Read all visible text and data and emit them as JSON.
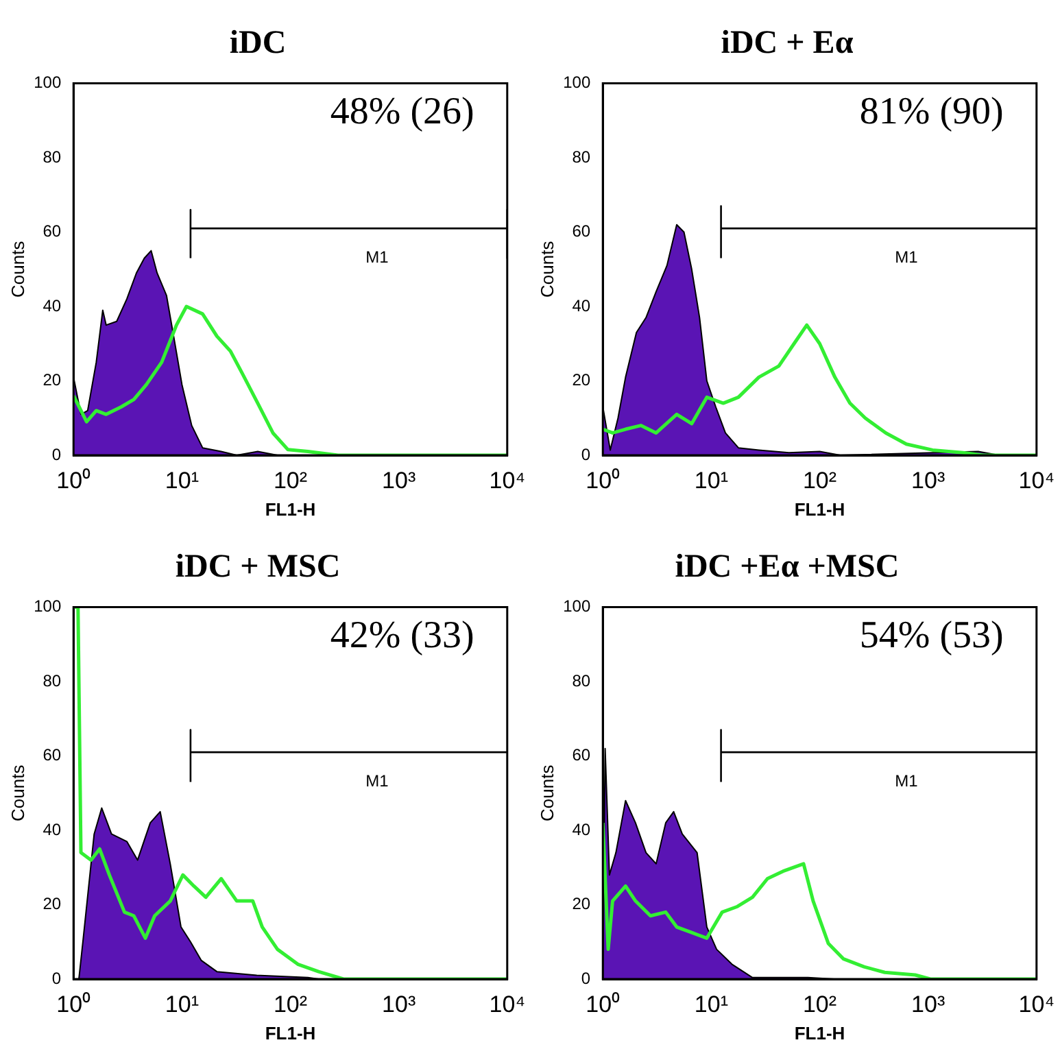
{
  "chart_data": [
    {
      "type": "area",
      "title": "iDC",
      "xlabel": "FL1-H",
      "ylabel": "Counts",
      "log": "x",
      "xlim": [
        1,
        10000
      ],
      "ylim": [
        0,
        100
      ],
      "xticks": [
        {
          "value": 1,
          "label": "10⁰"
        },
        {
          "value": 10,
          "label": "10¹"
        },
        {
          "value": 100,
          "label": "10²"
        },
        {
          "value": 1000,
          "label": "10³"
        },
        {
          "value": 10000,
          "label": "10⁴"
        }
      ],
      "yticks": [
        0,
        20,
        40,
        60,
        80,
        100
      ],
      "annotations": [
        "48% (26)",
        "M1"
      ],
      "series": [
        {
          "color": "#5a14b4",
          "x": [
            1,
            1.17,
            1.35,
            1.62,
            1.86,
            2.0,
            2.5,
            3.1,
            3.8,
            4.5,
            5.2,
            5.9,
            7.2,
            8.5,
            10,
            12.3,
            15.5,
            23,
            32,
            50,
            76,
            10000
          ],
          "values": [
            21,
            11,
            12,
            25,
            39,
            35,
            36,
            42,
            49,
            53,
            55,
            49,
            43,
            31,
            19,
            8,
            2,
            1,
            0,
            1,
            0,
            0
          ]
        },
        {
          "type": "line",
          "color": "#33ee33",
          "x": [
            1,
            1.32,
            1.62,
            2.0,
            2.75,
            3.6,
            4.7,
            6.5,
            8.9,
            11,
            15.5,
            21,
            28,
            36,
            50,
            69,
            95,
            145,
            275,
            10000
          ],
          "values": [
            16,
            9,
            12,
            11,
            13,
            15,
            19,
            25,
            35,
            40,
            38,
            32,
            28,
            22,
            14,
            6,
            1.5,
            1,
            0,
            0
          ]
        },
        {
          "type": "line",
          "color": "#000000",
          "x": [
            12,
            12,
            12,
            10000,
            10000,
            10000
          ],
          "values": [
            53,
            66,
            61,
            61,
            66,
            53
          ]
        }
      ]
    },
    {
      "type": "area",
      "title": "iDC + Eα",
      "xlabel": "FL1-H",
      "ylabel": "Counts",
      "log": "x",
      "xlim": [
        1,
        10000
      ],
      "ylim": [
        0,
        100
      ],
      "xticks": [
        {
          "value": 1,
          "label": "10⁰"
        },
        {
          "value": 10,
          "label": "10¹"
        },
        {
          "value": 100,
          "label": "10²"
        },
        {
          "value": 1000,
          "label": "10³"
        },
        {
          "value": 10000,
          "label": "10⁴"
        }
      ],
      "yticks": [
        0,
        20,
        40,
        60,
        80,
        100
      ],
      "annotations": [
        "81% (90)",
        "M1"
      ],
      "series": [
        {
          "color": "#5a14b4",
          "x": [
            1,
            1.17,
            1.38,
            1.62,
            2.04,
            2.5,
            3.1,
            3.9,
            4.8,
            5.6,
            6.6,
            7.8,
            9.1,
            11,
            13.5,
            17.8,
            27.5,
            52,
            100,
            155,
            2900,
            4500,
            10000
          ],
          "values": [
            13,
            1.4,
            10,
            21,
            33,
            37,
            44,
            51,
            62,
            60,
            50,
            37,
            20,
            13,
            6,
            2,
            1.4,
            0.7,
            1,
            0,
            1,
            0,
            0
          ]
        },
        {
          "type": "line",
          "color": "#33ee33",
          "x": [
            1,
            1.23,
            1.62,
            2.24,
            3.1,
            4.8,
            6.6,
            9.1,
            12.9,
            17.8,
            27.5,
            42,
            58,
            76,
            100,
            138,
            190,
            263,
            407,
            630,
            1100,
            2090,
            3240,
            10000
          ],
          "values": [
            7,
            6,
            7,
            8,
            6,
            11,
            8.5,
            15.6,
            14,
            15.6,
            21,
            24,
            30,
            35,
            30,
            21,
            14,
            10,
            6,
            3,
            1.4,
            0.7,
            0,
            0
          ]
        },
        {
          "type": "line",
          "color": "#000000",
          "x": [
            12.3,
            12.3,
            12.3,
            10000
          ],
          "values": [
            53,
            67,
            61,
            61
          ]
        }
      ]
    },
    {
      "type": "area",
      "title": "iDC + MSC",
      "xlabel": "FL1-H",
      "ylabel": "Counts",
      "log": "x",
      "xlim": [
        1,
        10000
      ],
      "ylim": [
        0,
        100
      ],
      "xticks": [
        {
          "value": 1,
          "label": "10⁰"
        },
        {
          "value": 10,
          "label": "10¹"
        },
        {
          "value": 100,
          "label": "10²"
        },
        {
          "value": 1000,
          "label": "10³"
        },
        {
          "value": 10000,
          "label": "10⁴"
        }
      ],
      "yticks": [
        0,
        20,
        40,
        60,
        80,
        100
      ],
      "annotations": [
        "42% (33)",
        "M1"
      ],
      "series": [
        {
          "color": "#5a14b4",
          "x": [
            1.12,
            1.23,
            1.55,
            1.82,
            2.24,
            3.1,
            3.9,
            5.1,
            6.3,
            7.8,
            9.8,
            12,
            15.1,
            21,
            49,
            145,
            182,
            10000
          ],
          "values": [
            0,
            11,
            39,
            46,
            39,
            37,
            32,
            42,
            45,
            31,
            14,
            10,
            5,
            2,
            1,
            0.4,
            0,
            0
          ]
        },
        {
          "type": "line",
          "color": "#33ee33",
          "x": [
            1,
            1.1,
            1.17,
            1.45,
            1.74,
            2.14,
            2.95,
            3.6,
            4.6,
            5.6,
            7.8,
            10.2,
            12.9,
            16.6,
            23,
            32,
            45,
            55,
            76,
            117,
            182,
            309,
            10000
          ],
          "values": [
            100,
            100,
            34,
            32,
            35,
            28,
            18,
            17,
            11,
            17,
            21,
            28,
            25,
            22,
            27,
            21,
            21,
            14,
            8,
            4,
            2,
            0,
            0
          ]
        },
        {
          "type": "line",
          "color": "#000000",
          "x": [
            12,
            12,
            12,
            10000
          ],
          "values": [
            53,
            67,
            61,
            61
          ]
        }
      ]
    },
    {
      "type": "area",
      "title": "iDC +Eα +MSC",
      "xlabel": "FL1-H",
      "ylabel": "Counts",
      "log": "x",
      "xlim": [
        1,
        10000
      ],
      "ylim": [
        0,
        100
      ],
      "xticks": [
        {
          "value": 1,
          "label": "10⁰"
        },
        {
          "value": 10,
          "label": "10¹"
        },
        {
          "value": 100,
          "label": "10²"
        },
        {
          "value": 1000,
          "label": "10³"
        },
        {
          "value": 10000,
          "label": "10⁴"
        }
      ],
      "yticks": [
        0,
        20,
        40,
        60,
        80,
        100
      ],
      "annotations": [
        "54% (53)",
        "M1"
      ],
      "series": [
        {
          "color": "#5a14b4",
          "x": [
            1,
            1.05,
            1.15,
            1.32,
            1.62,
            2.0,
            2.5,
            3.1,
            3.8,
            4.5,
            5.4,
            7.4,
            9.1,
            11.2,
            15.5,
            24,
            78,
            135,
            10000
          ],
          "values": [
            0,
            62,
            28,
            34,
            48,
            42,
            34,
            31,
            42,
            45,
            39,
            34,
            14,
            8,
            4,
            0.4,
            0.4,
            0,
            0
          ]
        },
        {
          "type": "line",
          "color": "#33ee33",
          "x": [
            1,
            1.12,
            1.23,
            1.62,
            2.0,
            2.75,
            3.8,
            4.8,
            6.6,
            9.1,
            12.6,
            17.4,
            24,
            33,
            46,
            71,
            87,
            120,
            166,
            257,
            398,
            760,
            1050,
            10000
          ],
          "values": [
            42,
            8,
            21,
            25,
            21,
            17,
            18,
            14,
            12.5,
            11,
            18,
            19.5,
            22,
            27,
            29,
            31,
            21,
            9.6,
            5.4,
            3.3,
            1.8,
            1.1,
            0,
            0
          ]
        },
        {
          "type": "line",
          "color": "#000000",
          "x": [
            12.3,
            12.3,
            12.3,
            10000
          ],
          "values": [
            53,
            67,
            61,
            61
          ]
        }
      ]
    }
  ]
}
